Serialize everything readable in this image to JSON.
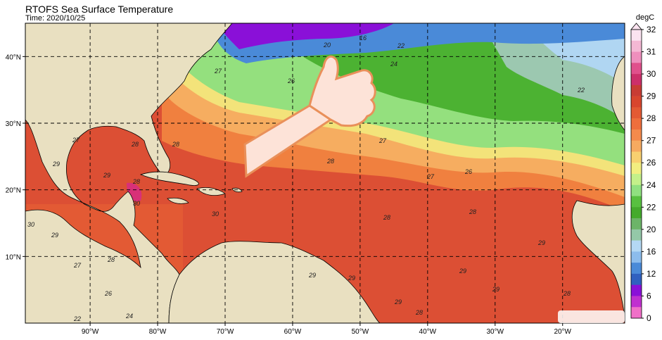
{
  "map": {
    "title": "RTOFS Sea Surface Temperature",
    "subtitle": "Time: 2020/10/25",
    "xlim": [
      -99.6,
      -10.8
    ],
    "ylim": [
      0,
      45
    ],
    "xticks": [
      {
        "value": -90,
        "label": "90°W"
      },
      {
        "value": -80,
        "label": "80°W"
      },
      {
        "value": -70,
        "label": "70°W"
      },
      {
        "value": -60,
        "label": "60°W"
      },
      {
        "value": -50,
        "label": "50°W"
      },
      {
        "value": -40,
        "label": "40°W"
      },
      {
        "value": -30,
        "label": "30°W"
      },
      {
        "value": -20,
        "label": "20°W"
      }
    ],
    "yticks": [
      {
        "value": 10,
        "label": "10°N"
      },
      {
        "value": 20,
        "label": "20°N"
      },
      {
        "value": 30,
        "label": "30°N"
      },
      {
        "value": 40,
        "label": "40°N"
      }
    ],
    "grid": true,
    "colorbar": {
      "label": "degC",
      "ticks": [
        32,
        31,
        30,
        29,
        28,
        27,
        26,
        24,
        22,
        20,
        16,
        12,
        6,
        0
      ],
      "colors": [
        "#fbe3f0",
        "#f4b8d4",
        "#ee8fbd",
        "#e0508c",
        "#cc2f6a",
        "#c83c34",
        "#d8462e",
        "#e35a34",
        "#ee6e3c",
        "#f48a4c",
        "#f6aa60",
        "#f8d070",
        "#f2ee80",
        "#c4f08a",
        "#90e080",
        "#58c040",
        "#44aa2c",
        "#6cb468",
        "#94c8a8",
        "#b4d8f4",
        "#8cbcec",
        "#4a8ad8",
        "#3060c0",
        "#8a10d8",
        "#c030d0",
        "#f070c8"
      ]
    },
    "contour_labels": [
      29,
      28,
      27,
      28,
      29,
      28,
      30,
      30,
      29,
      27,
      28,
      26,
      24,
      22,
      26,
      27,
      20,
      16,
      22,
      24,
      22,
      27,
      28,
      26,
      27,
      28,
      28,
      29,
      29,
      29,
      29,
      28,
      28,
      29,
      29,
      30
    ]
  }
}
